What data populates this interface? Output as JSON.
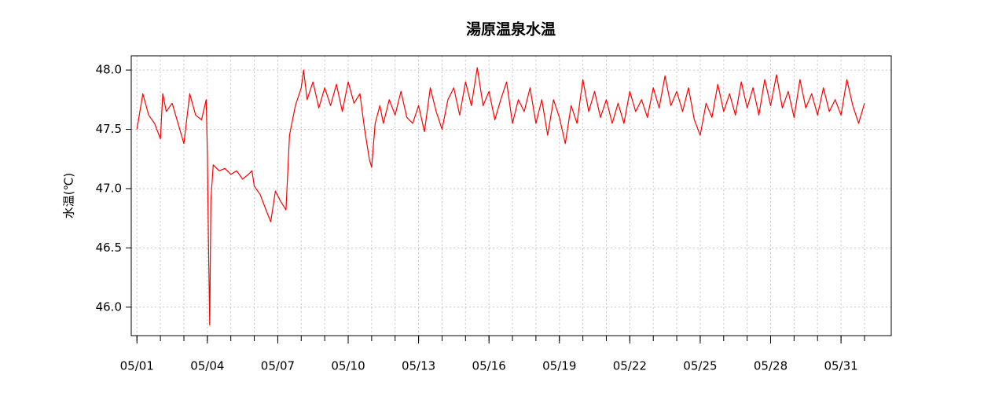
{
  "chart_data": {
    "type": "line",
    "title": "湯原温泉水温",
    "y_label": "水温(℃)",
    "color": "#ff0000",
    "grid": true,
    "x": [
      1.0,
      1.25,
      1.5,
      1.75,
      2.0,
      2.1,
      2.25,
      2.5,
      2.75,
      3.0,
      3.25,
      3.5,
      3.75,
      3.95,
      4.0,
      4.05,
      4.1,
      4.15,
      4.25,
      4.5,
      4.75,
      5.0,
      5.25,
      5.5,
      5.75,
      5.9,
      6.0,
      6.25,
      6.5,
      6.7,
      6.9,
      7.1,
      7.35,
      7.5,
      7.75,
      8.0,
      8.1,
      8.25,
      8.5,
      8.75,
      9.0,
      9.25,
      9.5,
      9.75,
      10.0,
      10.25,
      10.5,
      10.7,
      10.9,
      11.0,
      11.15,
      11.35,
      11.5,
      11.75,
      12.0,
      12.25,
      12.5,
      12.75,
      13.0,
      13.25,
      13.5,
      13.75,
      14.0,
      14.25,
      14.5,
      14.75,
      15.0,
      15.25,
      15.5,
      15.75,
      16.0,
      16.25,
      16.5,
      16.75,
      17.0,
      17.25,
      17.5,
      17.75,
      18.0,
      18.25,
      18.5,
      18.75,
      19.0,
      19.25,
      19.5,
      19.75,
      20.0,
      20.25,
      20.5,
      20.75,
      21.0,
      21.25,
      21.5,
      21.75,
      22.0,
      22.25,
      22.5,
      22.75,
      23.0,
      23.25,
      23.5,
      23.75,
      24.0,
      24.25,
      24.5,
      24.75,
      25.0,
      25.25,
      25.5,
      25.75,
      26.0,
      26.25,
      26.5,
      26.75,
      27.0,
      27.25,
      27.5,
      27.75,
      28.0,
      28.25,
      28.5,
      28.75,
      29.0,
      29.25,
      29.5,
      29.75,
      30.0,
      30.25,
      30.5,
      30.75,
      31.0,
      31.25,
      31.5,
      31.75,
      32.0
    ],
    "values": [
      47.5,
      47.8,
      47.62,
      47.55,
      47.42,
      47.8,
      47.65,
      47.72,
      47.55,
      47.38,
      47.8,
      47.62,
      47.58,
      47.75,
      47.3,
      46.5,
      45.85,
      46.9,
      47.2,
      47.15,
      47.17,
      47.12,
      47.15,
      47.08,
      47.12,
      47.15,
      47.02,
      46.95,
      46.82,
      46.72,
      46.98,
      46.9,
      46.82,
      47.45,
      47.7,
      47.85,
      48.0,
      47.75,
      47.9,
      47.68,
      47.85,
      47.7,
      47.88,
      47.65,
      47.9,
      47.72,
      47.8,
      47.5,
      47.25,
      47.18,
      47.55,
      47.7,
      47.55,
      47.75,
      47.62,
      47.82,
      47.6,
      47.55,
      47.7,
      47.48,
      47.85,
      47.65,
      47.5,
      47.75,
      47.85,
      47.62,
      47.9,
      47.7,
      48.02,
      47.7,
      47.82,
      47.58,
      47.75,
      47.9,
      47.55,
      47.75,
      47.65,
      47.85,
      47.55,
      47.75,
      47.45,
      47.75,
      47.6,
      47.38,
      47.7,
      47.55,
      47.92,
      47.65,
      47.82,
      47.6,
      47.75,
      47.55,
      47.72,
      47.55,
      47.82,
      47.65,
      47.75,
      47.6,
      47.85,
      47.68,
      47.95,
      47.7,
      47.82,
      47.65,
      47.85,
      47.58,
      47.45,
      47.72,
      47.6,
      47.88,
      47.65,
      47.8,
      47.62,
      47.9,
      47.68,
      47.85,
      47.62,
      47.92,
      47.7,
      47.96,
      47.68,
      47.82,
      47.6,
      47.92,
      47.68,
      47.8,
      47.62,
      47.85,
      47.65,
      47.75,
      47.62,
      47.92,
      47.7,
      47.55,
      47.72
    ],
    "xlim": [
      0.757,
      33.14
    ],
    "xticks": [
      {
        "value": 1,
        "label": "05/01"
      },
      {
        "value": 4,
        "label": "05/04"
      },
      {
        "value": 7,
        "label": "05/07"
      },
      {
        "value": 10,
        "label": "05/10"
      },
      {
        "value": 13,
        "label": "05/13"
      },
      {
        "value": 16,
        "label": "05/16"
      },
      {
        "value": 19,
        "label": "05/19"
      },
      {
        "value": 22,
        "label": "05/22"
      },
      {
        "value": 25,
        "label": "05/25"
      },
      {
        "value": 28,
        "label": "05/28"
      },
      {
        "value": 31,
        "label": "05/31"
      }
    ],
    "x_minor_ticks": [
      1,
      2,
      3,
      4,
      5,
      6,
      7,
      8,
      9,
      10,
      11,
      12,
      13,
      14,
      15,
      16,
      17,
      18,
      19,
      20,
      21,
      22,
      23,
      24,
      25,
      26,
      27,
      28,
      29,
      30,
      31,
      32
    ],
    "ylim": [
      45.76,
      48.12
    ],
    "yticks": [
      {
        "value": 46.0,
        "label": "46.0"
      },
      {
        "value": 46.5,
        "label": "46.5"
      },
      {
        "value": 47.0,
        "label": "47.0"
      },
      {
        "value": 47.5,
        "label": "47.5"
      },
      {
        "value": 48.0,
        "label": "48.0"
      }
    ]
  }
}
